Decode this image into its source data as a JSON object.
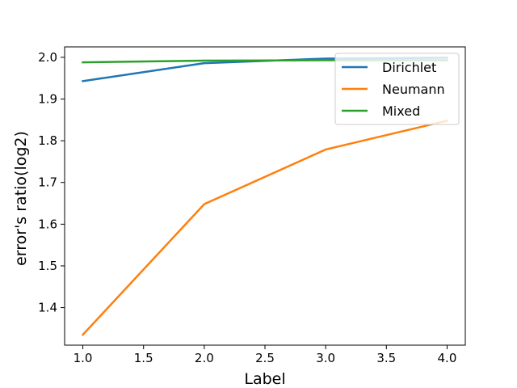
{
  "chart_data": {
    "type": "line",
    "title": "",
    "xlabel": "Label",
    "ylabel": "error's ratio(log2)",
    "x": [
      1.0,
      2.0,
      3.0,
      4.0
    ],
    "xlim": [
      0.85,
      4.15
    ],
    "ylim": [
      1.31,
      2.025
    ],
    "x_ticks": [
      1.0,
      1.5,
      2.0,
      2.5,
      3.0,
      3.5,
      4.0
    ],
    "x_tick_labels": [
      "1.0",
      "1.5",
      "2.0",
      "2.5",
      "3.0",
      "3.5",
      "4.0"
    ],
    "y_ticks": [
      1.4,
      1.5,
      1.6,
      1.7,
      1.8,
      1.9,
      2.0
    ],
    "y_tick_labels": [
      "1.4",
      "1.5",
      "1.6",
      "1.7",
      "1.8",
      "1.9",
      "2.0"
    ],
    "grid": false,
    "legend_position": "top-right",
    "series": [
      {
        "name": "Dirichlet",
        "color": "#1f77b4",
        "values": [
          1.943,
          1.986,
          1.997,
          1.999
        ]
      },
      {
        "name": "Neumann",
        "color": "#ff7f0e",
        "values": [
          1.335,
          1.648,
          1.779,
          1.848
        ]
      },
      {
        "name": "Mixed",
        "color": "#2ca02c",
        "values": [
          1.988,
          1.992,
          1.993,
          1.993
        ]
      }
    ]
  }
}
